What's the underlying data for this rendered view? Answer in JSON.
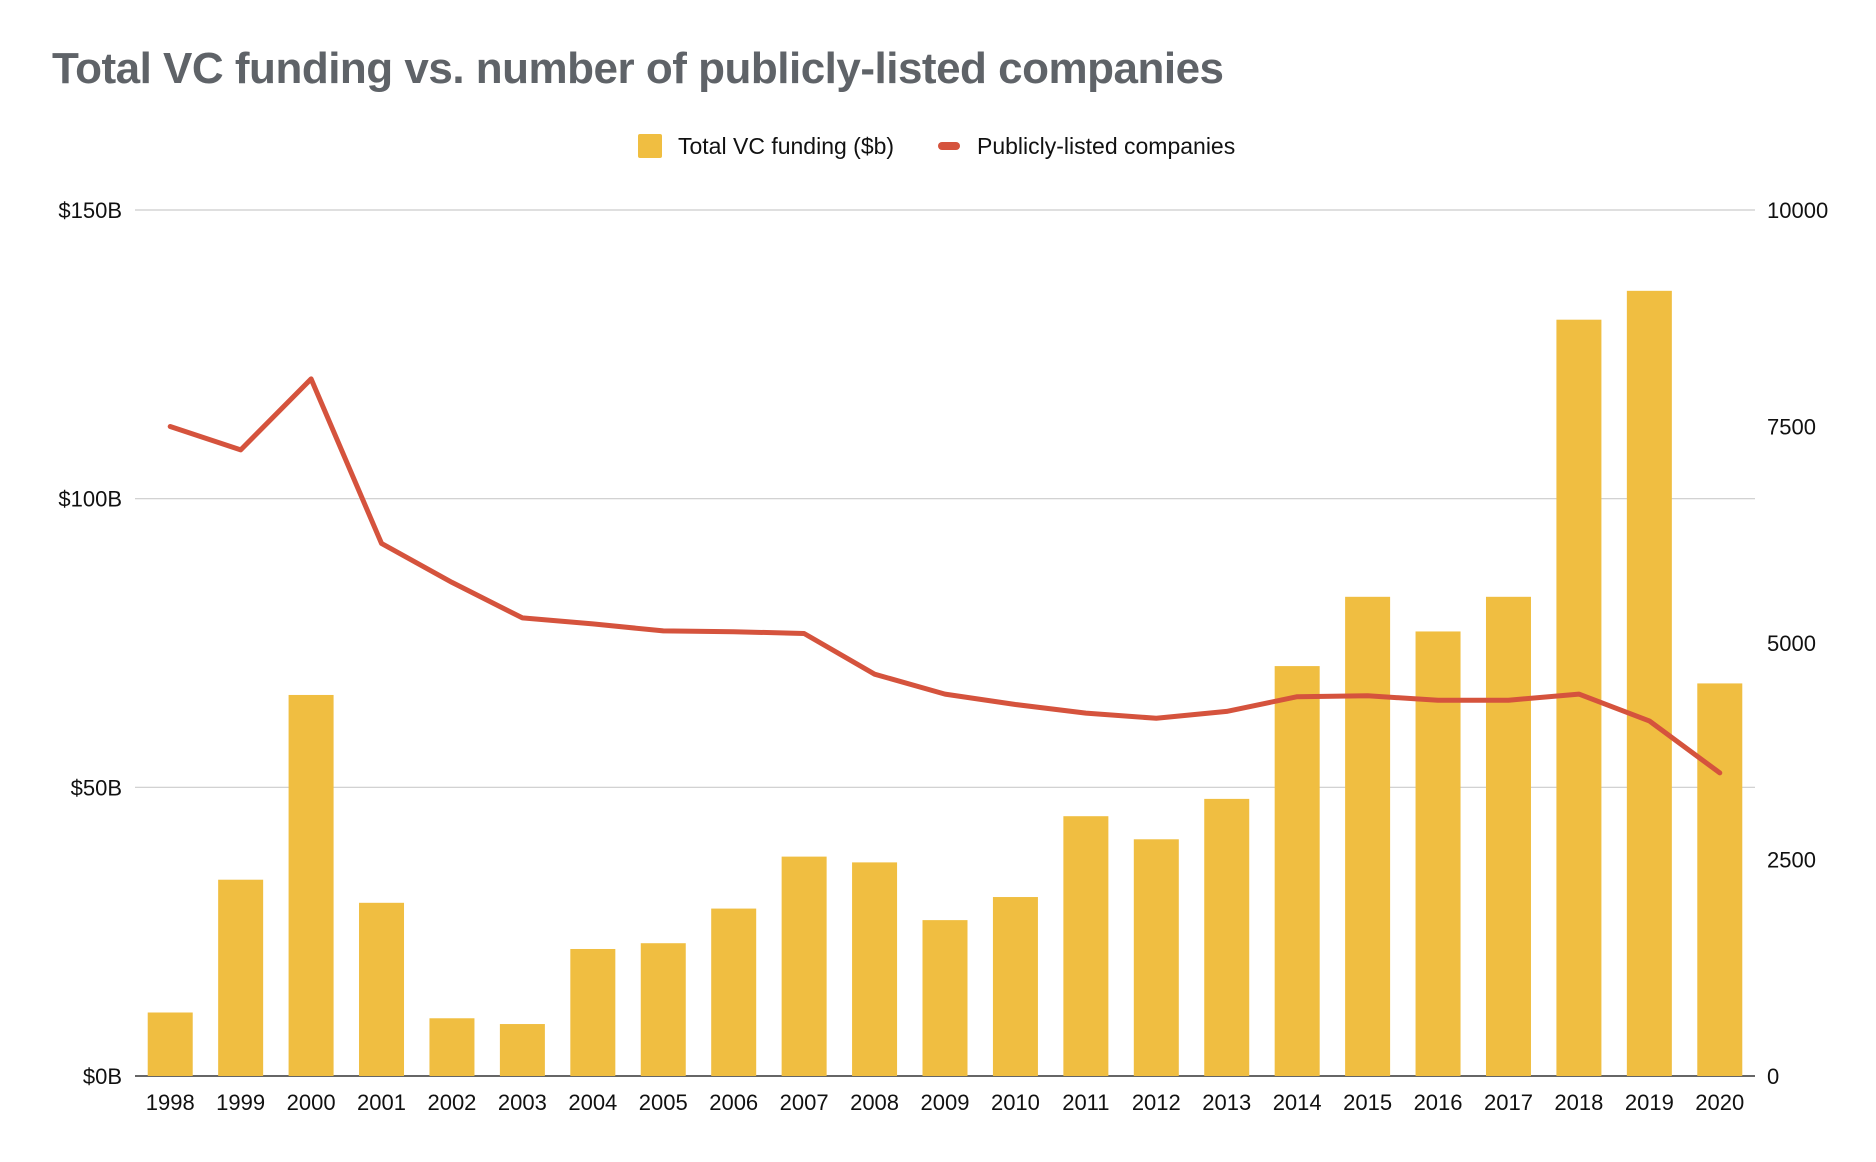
{
  "chart_data": {
    "type": "bar",
    "title": "Total VC funding vs. number of publicly-listed companies",
    "categories": [
      "1998",
      "1999",
      "2000",
      "2001",
      "2002",
      "2003",
      "2004",
      "2005",
      "2006",
      "2007",
      "2008",
      "2009",
      "2010",
      "2011",
      "2012",
      "2013",
      "2014",
      "2015",
      "2016",
      "2017",
      "2018",
      "2019",
      "2020"
    ],
    "series": [
      {
        "name": "Total VC funding ($b)",
        "type": "bar",
        "axis": "left",
        "color": "#f0be41",
        "values": [
          11,
          34,
          66,
          30,
          10,
          9,
          22,
          23,
          29,
          38,
          37,
          27,
          31,
          45,
          41,
          48,
          71,
          83,
          77,
          83,
          131,
          136,
          68
        ]
      },
      {
        "name": "Publicly-listed companies",
        "type": "line",
        "axis": "right",
        "color": "#d5533d",
        "values": [
          7500,
          7230,
          8050,
          6150,
          5700,
          5290,
          5220,
          5140,
          5130,
          5110,
          4640,
          4410,
          4290,
          4190,
          4130,
          4210,
          4380,
          4390,
          4340,
          4340,
          4410,
          4100,
          3500
        ]
      }
    ],
    "y_left": {
      "ylim": [
        0,
        150
      ],
      "ticks": [
        0,
        50,
        100,
        150
      ],
      "tick_labels": [
        "$0B",
        "$50B",
        "$100B",
        "$150B"
      ]
    },
    "y_right": {
      "ylim": [
        0,
        10000
      ],
      "ticks": [
        0,
        2500,
        5000,
        7500,
        10000
      ],
      "tick_labels": [
        "0",
        "2500",
        "5000",
        "7500",
        "10000"
      ]
    },
    "grid": true,
    "legend_position": "top-center",
    "xlabel": "",
    "ylabel": ""
  }
}
